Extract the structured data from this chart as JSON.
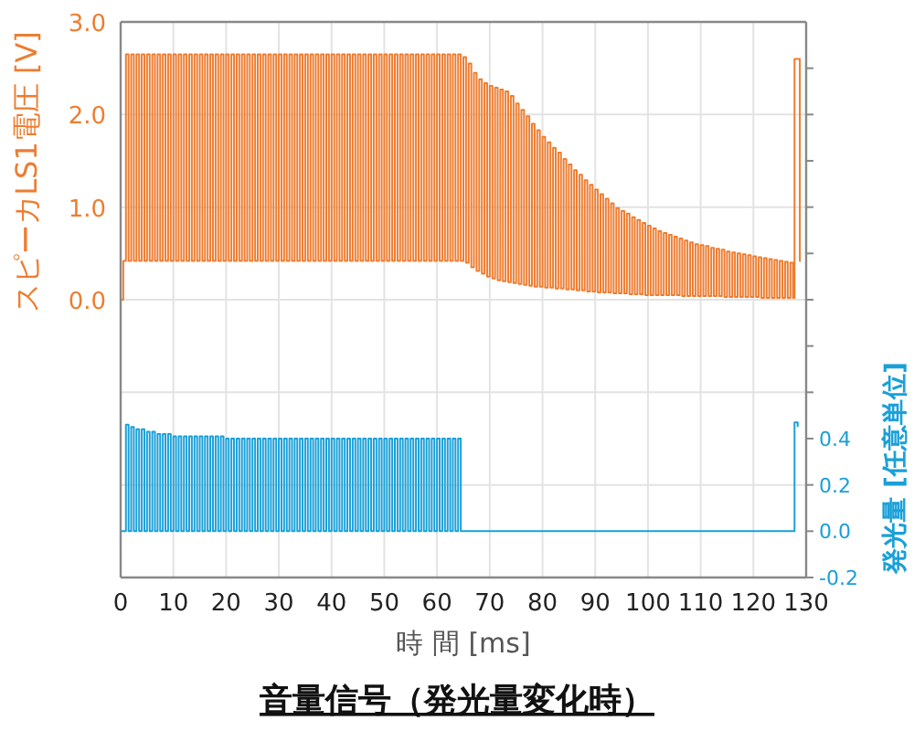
{
  "chart_data": {
    "type": "step",
    "title": "音量信号（発光量変化時）",
    "xlabel": "時 間 [ms]",
    "ylabel": "スピーカLS1電圧 [V]",
    "y2label": "発光量 [任意単位]",
    "xlim": [
      0,
      130
    ],
    "xticks": [
      0,
      10,
      20,
      30,
      40,
      50,
      60,
      70,
      80,
      90,
      100,
      110,
      120,
      130
    ],
    "ylim": [
      -3,
      3
    ],
    "yticks": [
      {
        "value": -2,
        "label": null
      },
      {
        "value": -1,
        "label": null
      },
      {
        "value": 0,
        "label": "0.0"
      },
      {
        "value": 1,
        "label": "1.0"
      },
      {
        "value": 2,
        "label": "2.0"
      },
      {
        "value": 3,
        "label": "3.0"
      }
    ],
    "y2lim": [
      -0.2,
      2.2
    ],
    "y2ticks": [
      {
        "value": -0.2,
        "label": "-0.2"
      },
      {
        "value": 0,
        "label": "0.0"
      },
      {
        "value": 0.2,
        "label": "0.2"
      },
      {
        "value": 0.4,
        "label": "0.4"
      },
      {
        "value": 0.6,
        "label": null
      },
      {
        "value": 0.8,
        "label": null
      },
      {
        "value": 1.0,
        "label": null
      },
      {
        "value": 1.2,
        "label": null
      },
      {
        "value": 1.4,
        "label": null
      },
      {
        "value": 1.6,
        "label": null
      },
      {
        "value": 1.8,
        "label": null
      },
      {
        "value": 2.0,
        "label": null
      }
    ],
    "grid": true,
    "series": [
      {
        "color": "#ed7d31",
        "axis": "y",
        "x": [
          0,
          0.5,
          1,
          1.5,
          2,
          2.5,
          3,
          3.5,
          4,
          4.5,
          5,
          5.5,
          6,
          6.5,
          7,
          7.5,
          8,
          8.5,
          9,
          9.5,
          10,
          10.5,
          11,
          11.5,
          12,
          12.5,
          13,
          13.5,
          14,
          14.5,
          15,
          15.5,
          16,
          16.5,
          17,
          17.5,
          18,
          18.5,
          19,
          19.5,
          20,
          20.5,
          21,
          21.5,
          22,
          22.5,
          23,
          23.5,
          24,
          24.5,
          25,
          25.5,
          26,
          26.5,
          27,
          27.5,
          28,
          28.5,
          29,
          29.5,
          30,
          30.5,
          31,
          31.5,
          32,
          32.5,
          33,
          33.5,
          34,
          34.5,
          35,
          35.5,
          36,
          36.5,
          37,
          37.5,
          38,
          38.5,
          39,
          39.5,
          40,
          40.5,
          41,
          41.5,
          42,
          42.5,
          43,
          43.5,
          44,
          44.5,
          45,
          45.5,
          46,
          46.5,
          47,
          47.5,
          48,
          48.5,
          49,
          49.5,
          50,
          50.5,
          51,
          51.5,
          52,
          52.5,
          53,
          53.5,
          54,
          54.5,
          55,
          55.5,
          56,
          56.5,
          57,
          57.5,
          58,
          58.5,
          59,
          59.5,
          60,
          60.5,
          61,
          61.5,
          62,
          62.5,
          63,
          63.5,
          64,
          64.5,
          65,
          65.5,
          66,
          66.5,
          67,
          67.5,
          68,
          68.5,
          69,
          69.5,
          70,
          70.5,
          71,
          71.5,
          72,
          72.5,
          73,
          73.5,
          74,
          74.5,
          75,
          75.5,
          76,
          76.5,
          77,
          77.5,
          78,
          78.5,
          79,
          79.5,
          80,
          80.5,
          81,
          81.5,
          82,
          82.5,
          83,
          83.5,
          84,
          84.5,
          85,
          85.5,
          86,
          86.5,
          87,
          87.5,
          88,
          88.5,
          89,
          89.5,
          90,
          90.5,
          91,
          91.5,
          92,
          92.5,
          93,
          93.5,
          94,
          94.5,
          95,
          95.5,
          96,
          96.5,
          97,
          97.5,
          98,
          98.5,
          99,
          99.5,
          100,
          100.5,
          101,
          101.5,
          102,
          102.5,
          103,
          103.5,
          104,
          104.5,
          105,
          105.5,
          106,
          106.5,
          107,
          107.5,
          108,
          108.5,
          109,
          109.5,
          110,
          110.5,
          111,
          111.5,
          112,
          112.5,
          113,
          113.5,
          114,
          114.5,
          115,
          115.5,
          116,
          116.5,
          117,
          117.5,
          118,
          118.5,
          119,
          119.5,
          120,
          120.5,
          121,
          121.5,
          122,
          122.5,
          123,
          123.5,
          124,
          124.5,
          125,
          125.5,
          126,
          126.5,
          127,
          127.5,
          127.8,
          128.8,
          129
        ],
        "values": [
          0,
          0.42,
          2.65,
          0.42,
          2.65,
          0.42,
          2.65,
          0.42,
          2.65,
          0.42,
          2.65,
          0.42,
          2.65,
          0.42,
          2.65,
          0.42,
          2.65,
          0.42,
          2.65,
          0.42,
          2.65,
          0.42,
          2.65,
          0.42,
          2.65,
          0.42,
          2.65,
          0.42,
          2.65,
          0.42,
          2.65,
          0.42,
          2.65,
          0.42,
          2.65,
          0.42,
          2.65,
          0.42,
          2.65,
          0.42,
          2.65,
          0.42,
          2.65,
          0.42,
          2.65,
          0.42,
          2.65,
          0.42,
          2.65,
          0.42,
          2.65,
          0.42,
          2.65,
          0.42,
          2.65,
          0.42,
          2.65,
          0.42,
          2.65,
          0.42,
          2.65,
          0.42,
          2.65,
          0.42,
          2.65,
          0.42,
          2.65,
          0.42,
          2.65,
          0.42,
          2.65,
          0.42,
          2.65,
          0.42,
          2.65,
          0.42,
          2.65,
          0.42,
          2.65,
          0.42,
          2.65,
          0.42,
          2.65,
          0.42,
          2.65,
          0.42,
          2.65,
          0.42,
          2.65,
          0.42,
          2.65,
          0.42,
          2.65,
          0.42,
          2.65,
          0.42,
          2.65,
          0.42,
          2.65,
          0.42,
          2.65,
          0.42,
          2.65,
          0.42,
          2.65,
          0.42,
          2.65,
          0.42,
          2.65,
          0.42,
          2.65,
          0.42,
          2.65,
          0.42,
          2.65,
          0.42,
          2.65,
          0.42,
          2.65,
          0.42,
          2.65,
          0.42,
          2.65,
          0.42,
          2.65,
          0.42,
          2.65,
          0.42,
          2.65,
          0.42,
          2.62,
          0.4,
          2.55,
          0.35,
          2.45,
          0.31,
          2.38,
          0.28,
          2.34,
          0.25,
          2.31,
          0.23,
          2.29,
          0.21,
          2.27,
          0.2,
          2.25,
          0.19,
          2.2,
          0.18,
          2.12,
          0.17,
          2.05,
          0.16,
          1.98,
          0.15,
          1.9,
          0.14,
          1.83,
          0.14,
          1.76,
          0.13,
          1.7,
          0.13,
          1.64,
          0.12,
          1.59,
          0.12,
          1.52,
          0.11,
          1.46,
          0.11,
          1.4,
          0.1,
          1.35,
          0.1,
          1.29,
          0.09,
          1.24,
          0.09,
          1.19,
          0.08,
          1.14,
          0.08,
          1.09,
          0.08,
          1.04,
          0.07,
          0.99,
          0.07,
          0.96,
          0.07,
          0.93,
          0.06,
          0.89,
          0.06,
          0.86,
          0.06,
          0.83,
          0.05,
          0.8,
          0.05,
          0.77,
          0.05,
          0.74,
          0.05,
          0.72,
          0.05,
          0.7,
          0.05,
          0.68,
          0.05,
          0.66,
          0.04,
          0.64,
          0.04,
          0.62,
          0.04,
          0.6,
          0.04,
          0.59,
          0.04,
          0.58,
          0.04,
          0.56,
          0.04,
          0.55,
          0.04,
          0.54,
          0.03,
          0.52,
          0.03,
          0.51,
          0.03,
          0.5,
          0.03,
          0.49,
          0.03,
          0.48,
          0.03,
          0.47,
          0.03,
          0.46,
          0.02,
          0.45,
          0.02,
          0.44,
          0.02,
          0.43,
          0.02,
          0.42,
          0.02,
          0.41,
          0.02,
          0.4,
          0.02,
          2.6,
          0.42,
          0.42
        ]
      },
      {
        "color": "#1aa0d8",
        "axis": "y2",
        "x": [
          0,
          1,
          1.5,
          2,
          2.5,
          3,
          3.5,
          4,
          4.5,
          5,
          5.5,
          6,
          6.5,
          7,
          7.5,
          8,
          8.5,
          9,
          9.5,
          10,
          10.5,
          11,
          11.5,
          12,
          12.5,
          13,
          13.5,
          14,
          14.5,
          15,
          15.5,
          16,
          16.5,
          17,
          17.5,
          18,
          18.5,
          19,
          19.5,
          20,
          20.5,
          21,
          21.5,
          22,
          22.5,
          23,
          23.5,
          24,
          24.5,
          25,
          25.5,
          26,
          26.5,
          27,
          27.5,
          28,
          28.5,
          29,
          29.5,
          30,
          30.5,
          31,
          31.5,
          32,
          32.5,
          33,
          33.5,
          34,
          34.5,
          35,
          35.5,
          36,
          36.5,
          37,
          37.5,
          38,
          38.5,
          39,
          39.5,
          40,
          40.5,
          41,
          41.5,
          42,
          42.5,
          43,
          43.5,
          44,
          44.5,
          45,
          45.5,
          46,
          46.5,
          47,
          47.5,
          48,
          48.5,
          49,
          49.5,
          50,
          50.5,
          51,
          51.5,
          52,
          52.5,
          53,
          53.5,
          54,
          54.5,
          55,
          55.5,
          56,
          56.5,
          57,
          57.5,
          58,
          58.5,
          59,
          59.5,
          60,
          60.5,
          61,
          61.5,
          62,
          62.5,
          63,
          63.5,
          64,
          64.5,
          127.8,
          128.4
        ],
        "values": [
          0,
          0.46,
          0,
          0.45,
          0,
          0.44,
          0,
          0.44,
          0,
          0.43,
          0,
          0.43,
          0,
          0.42,
          0,
          0.42,
          0,
          0.42,
          0,
          0.41,
          0,
          0.41,
          0,
          0.41,
          0,
          0.41,
          0,
          0.41,
          0,
          0.41,
          0,
          0.41,
          0,
          0.41,
          0,
          0.41,
          0,
          0.41,
          0,
          0.4,
          0,
          0.4,
          0,
          0.4,
          0,
          0.4,
          0,
          0.4,
          0,
          0.4,
          0,
          0.4,
          0,
          0.4,
          0,
          0.4,
          0,
          0.4,
          0,
          0.4,
          0,
          0.4,
          0,
          0.4,
          0,
          0.4,
          0,
          0.4,
          0,
          0.4,
          0,
          0.4,
          0,
          0.4,
          0,
          0.4,
          0,
          0.4,
          0,
          0.4,
          0,
          0.4,
          0,
          0.4,
          0,
          0.4,
          0,
          0.4,
          0,
          0.4,
          0,
          0.4,
          0,
          0.4,
          0,
          0.4,
          0,
          0.4,
          0,
          0.4,
          0,
          0.4,
          0,
          0.4,
          0,
          0.4,
          0,
          0.4,
          0,
          0.4,
          0,
          0.4,
          0,
          0.4,
          0,
          0.4,
          0,
          0.4,
          0,
          0.4,
          0,
          0.4,
          0,
          0.4,
          0,
          0.4,
          0,
          0.4,
          0,
          0.47,
          0.45
        ]
      }
    ]
  }
}
